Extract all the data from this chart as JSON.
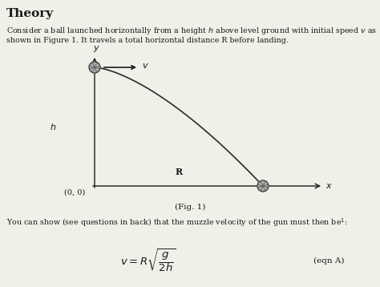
{
  "bg_color": "#f0efe8",
  "text_color": "#1a1a1a",
  "curve_color": "#2a2a2a",
  "axis_color": "#1a1a1a",
  "title": "Theory",
  "para1_line1": "Consider a ball launched horizontally from a height $h$ above level ground with initial speed $v$ as",
  "para1_line2": "shown in Figure 1. It travels a total horizontal distance R before landing.",
  "para2": "You can show (see questions in back) that the muzzle velocity of the gun must then be$^1$:",
  "fig_caption": "(Fig. 1)",
  "eqn_label": "(eqn A)"
}
